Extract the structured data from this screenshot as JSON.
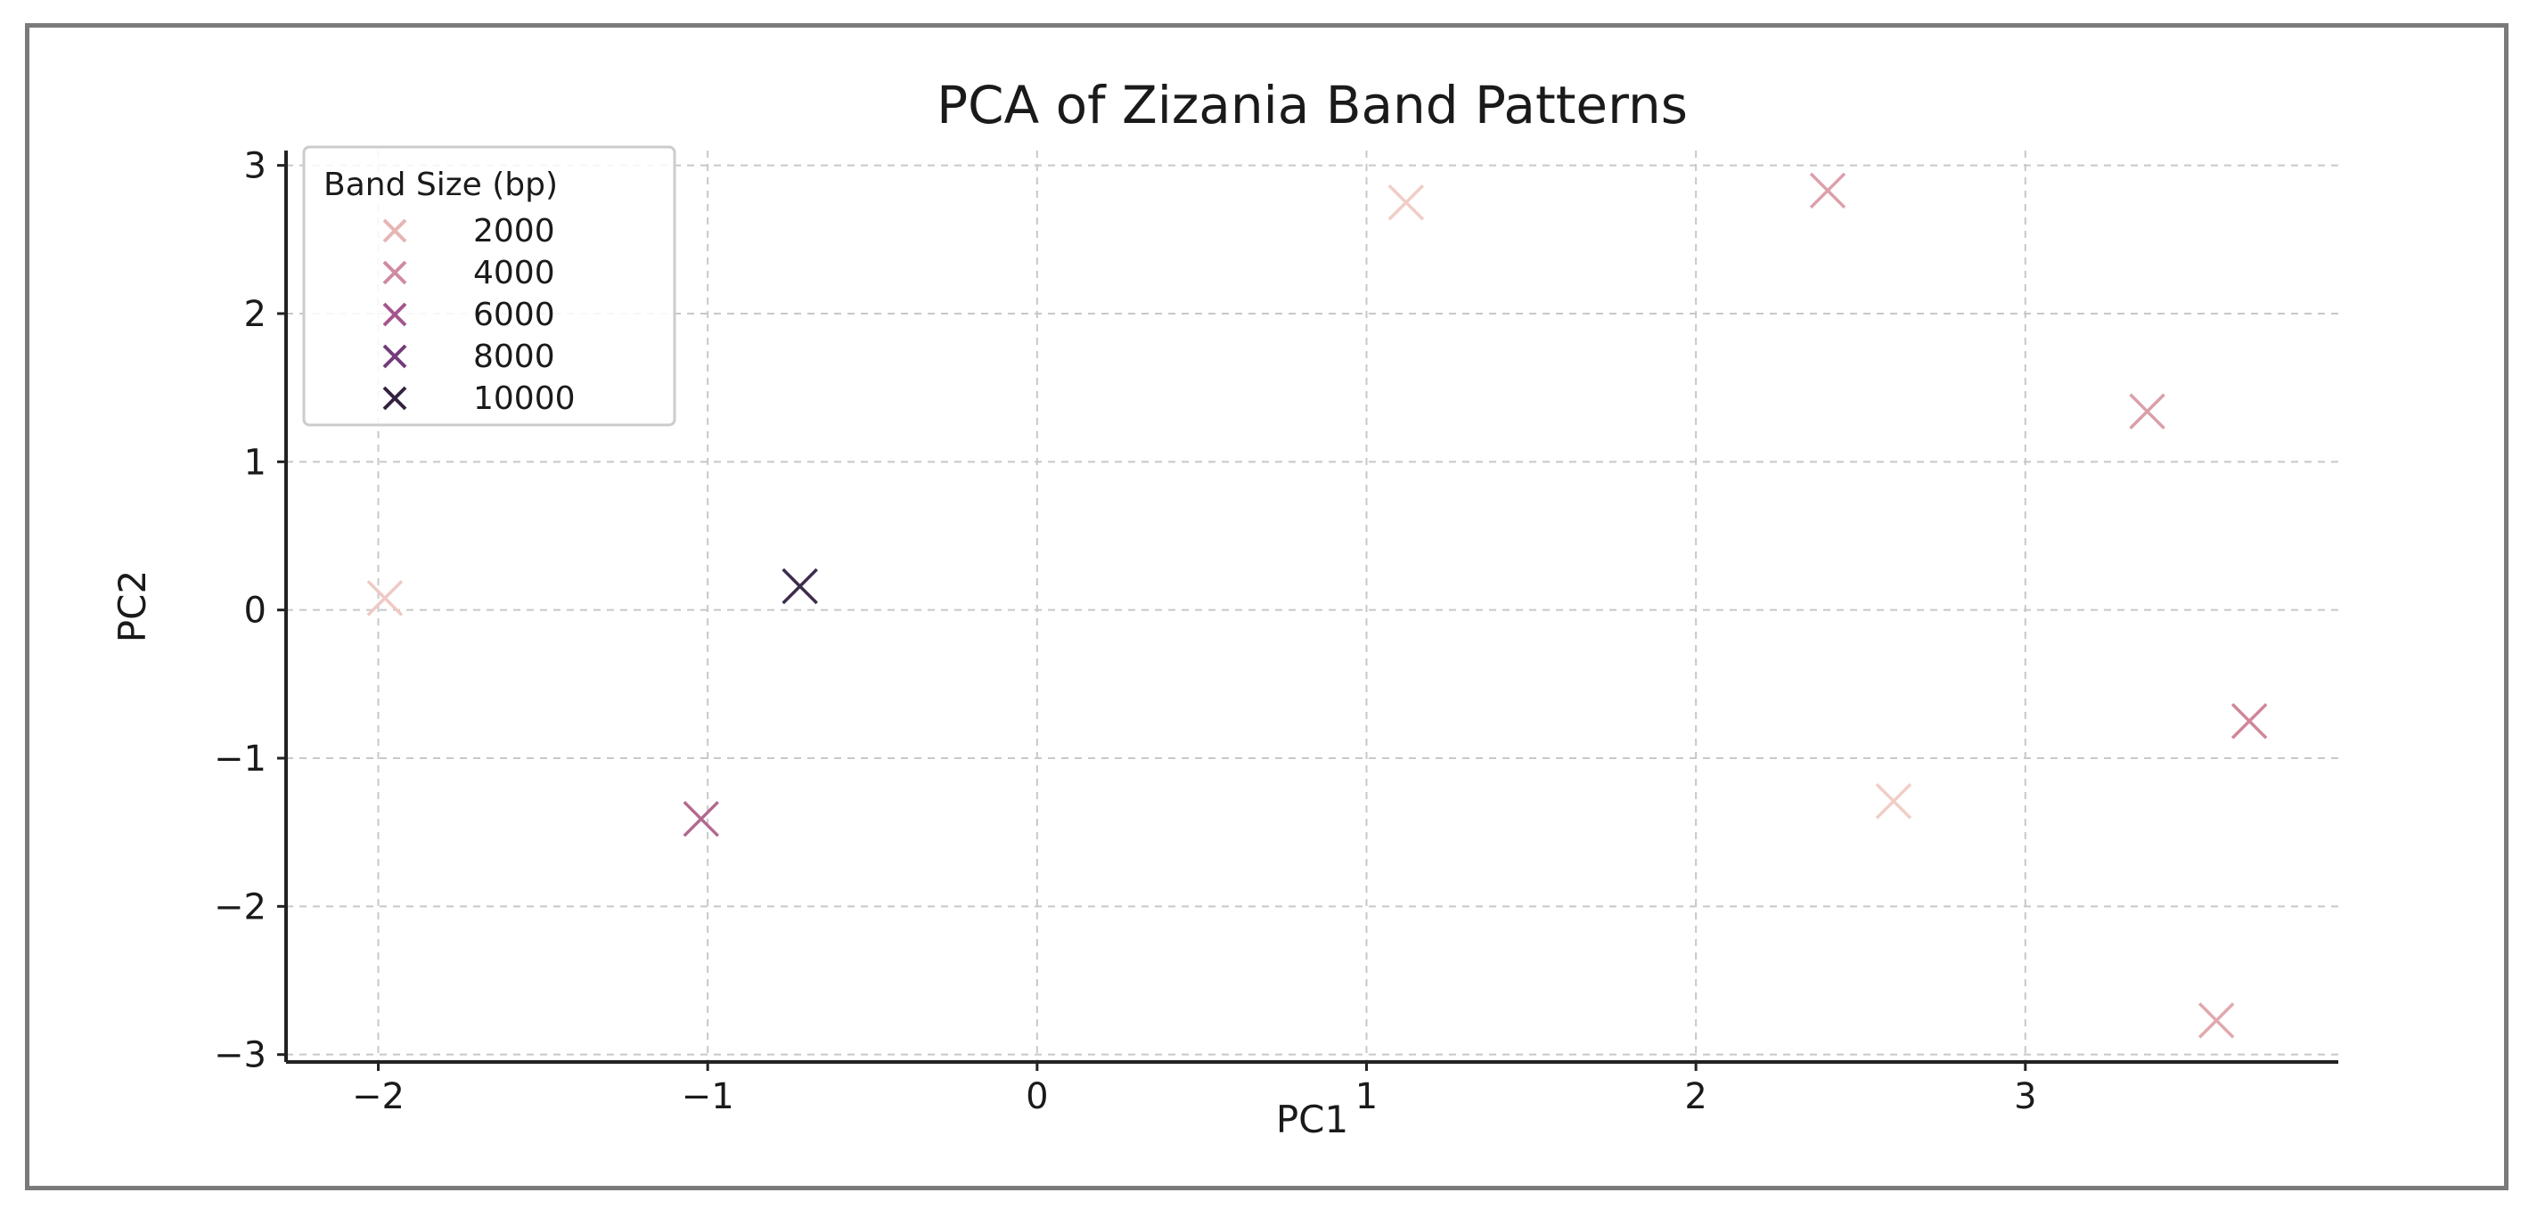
{
  "chart_data": {
    "type": "scatter",
    "title": "PCA of Zizania Band Patterns",
    "xlabel": "PC1",
    "ylabel": "PC2",
    "xlim": [
      -2.28,
      3.95
    ],
    "ylim": [
      -3.05,
      3.1
    ],
    "xticks": [
      -2,
      -1,
      0,
      1,
      2,
      3
    ],
    "yticks": [
      -3,
      -2,
      -1,
      0,
      1,
      2,
      3
    ],
    "xtick_labels": [
      "−2",
      "−1",
      "0",
      "1",
      "2",
      "3"
    ],
    "ytick_labels": [
      "−3",
      "−2",
      "−1",
      "0",
      "1",
      "2",
      "3"
    ],
    "grid": true,
    "marker": "x",
    "legend": {
      "title": "Band Size (bp)",
      "placement": "top-left",
      "entries": [
        {
          "label": "2000",
          "color": "#e6b5b4"
        },
        {
          "label": "4000",
          "color": "#cf8aa1"
        },
        {
          "label": "6000",
          "color": "#a5558e"
        },
        {
          "label": "8000",
          "color": "#733c7b"
        },
        {
          "label": "10000",
          "color": "#34213f"
        }
      ]
    },
    "points": [
      {
        "x": -1.98,
        "y": 0.08,
        "series": "2000",
        "color": "#efc9c4"
      },
      {
        "x": -0.72,
        "y": 0.16,
        "series": "10000",
        "color": "#3d2c4e"
      },
      {
        "x": -1.02,
        "y": -1.41,
        "series": "6000",
        "color": "#b2698e"
      },
      {
        "x": 1.12,
        "y": 2.75,
        "series": "2000",
        "color": "#f0cdc6"
      },
      {
        "x": 2.4,
        "y": 2.83,
        "series": "2000",
        "color": "#dca0aa"
      },
      {
        "x": 3.37,
        "y": 1.34,
        "series": "4000",
        "color": "#d99fa9"
      },
      {
        "x": 2.6,
        "y": -1.29,
        "series": "2000",
        "color": "#f0cec6"
      },
      {
        "x": 3.68,
        "y": -0.75,
        "series": "4000",
        "color": "#cf8799"
      },
      {
        "x": 3.58,
        "y": -2.77,
        "series": "2000",
        "color": "#e0a9ad"
      }
    ]
  }
}
